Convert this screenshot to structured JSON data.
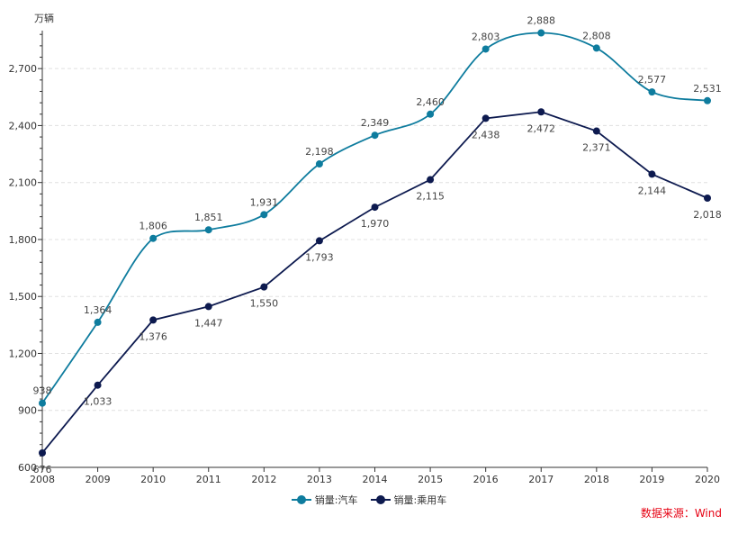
{
  "chart_data": {
    "type": "line",
    "unit_label": "万辆",
    "categories": [
      "2008",
      "2009",
      "2010",
      "2011",
      "2012",
      "2013",
      "2014",
      "2015",
      "2016",
      "2017",
      "2018",
      "2019",
      "2020"
    ],
    "ylim": [
      600,
      2900
    ],
    "y_ticks": [
      600,
      900,
      1200,
      1500,
      1800,
      2100,
      2400,
      2700
    ],
    "y_tick_labels": [
      "600",
      "900",
      "1,200",
      "1,500",
      "1,800",
      "2,100",
      "2,400",
      "2,700"
    ],
    "grid": "horizontal dashed",
    "legend_position": "bottom-center",
    "series": [
      {
        "name": "销量:汽车",
        "color": "#0e7c9e",
        "smooth": true,
        "label_position": "above",
        "values": [
          938,
          1364,
          1806,
          1851,
          1931,
          2198,
          2349,
          2460,
          2803,
          2888,
          2808,
          2577,
          2531
        ],
        "value_labels": [
          "938",
          "1,364",
          "1,806",
          "1,851",
          "1,931",
          "2,198",
          "2,349",
          "2,460",
          "2,803",
          "2,888",
          "2,808",
          "2,577",
          "2,531"
        ]
      },
      {
        "name": "销量:乘用车",
        "color": "#0d1a4f",
        "smooth": false,
        "label_position": "below",
        "values": [
          676,
          1033,
          1376,
          1447,
          1550,
          1793,
          1970,
          2115,
          2438,
          2472,
          2371,
          2144,
          2018
        ],
        "value_labels": [
          "676",
          "1,033",
          "1,376",
          "1,447",
          "1,550",
          "1,793",
          "1,970",
          "2,115",
          "2,438",
          "2,472",
          "2,371",
          "2,144",
          "2,018"
        ]
      }
    ]
  },
  "source_text": "数据来源：Wind",
  "colors": {
    "source": "#e60012",
    "grid": "#e0e0e0",
    "axis": "#333333"
  }
}
